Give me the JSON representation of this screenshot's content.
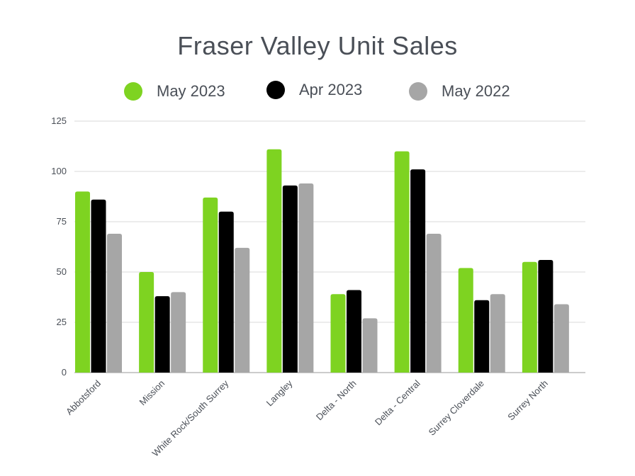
{
  "chart_data": {
    "type": "bar",
    "title": "Fraser Valley Unit Sales",
    "categories": [
      "Abbotsford",
      "Mission",
      "White Rock/South Surrey",
      "Langley",
      "Delta - North",
      "Delta - Central",
      "Surrey Cloverdale",
      "Surrey North"
    ],
    "series": [
      {
        "name": "May 2023",
        "color": "#7ed321",
        "values": [
          90,
          50,
          87,
          111,
          39,
          110,
          52,
          55
        ]
      },
      {
        "name": "Apr 2023",
        "color": "#000000",
        "values": [
          86,
          38,
          80,
          93,
          41,
          101,
          36,
          56
        ]
      },
      {
        "name": "May 2022",
        "color": "#a6a6a6",
        "values": [
          69,
          40,
          62,
          94,
          27,
          69,
          39,
          34
        ]
      }
    ],
    "ylim": [
      0,
      125
    ],
    "yticks": [
      0,
      25,
      50,
      75,
      100,
      125
    ],
    "grid": true,
    "legend": "top-center"
  }
}
